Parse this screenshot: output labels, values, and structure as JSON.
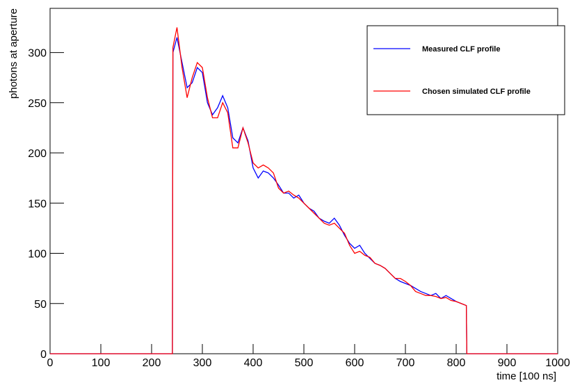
{
  "chart_data": {
    "type": "line",
    "xlabel": "time [100 ns]",
    "ylabel": "photons at aperture",
    "x": [
      0,
      241,
      242,
      250,
      260,
      270,
      280,
      290,
      300,
      310,
      320,
      330,
      340,
      350,
      360,
      370,
      380,
      390,
      400,
      410,
      420,
      430,
      440,
      450,
      460,
      470,
      480,
      490,
      500,
      510,
      520,
      530,
      540,
      550,
      560,
      570,
      580,
      590,
      600,
      610,
      620,
      630,
      640,
      650,
      660,
      670,
      680,
      690,
      700,
      710,
      720,
      730,
      740,
      750,
      760,
      770,
      780,
      790,
      800,
      810,
      820,
      821,
      1000
    ],
    "series": [
      {
        "name": "Measured CLF profile",
        "color": "#0000ff",
        "values": [
          0,
          0,
          300,
          315,
          290,
          265,
          270,
          285,
          280,
          250,
          238,
          245,
          257,
          245,
          215,
          210,
          225,
          212,
          185,
          175,
          182,
          180,
          175,
          168,
          160,
          160,
          155,
          158,
          150,
          145,
          142,
          135,
          132,
          130,
          135,
          128,
          118,
          110,
          105,
          108,
          100,
          95,
          90,
          88,
          85,
          80,
          75,
          72,
          70,
          68,
          65,
          62,
          60,
          58,
          60,
          55,
          58,
          55,
          52,
          50,
          48,
          0,
          0
        ]
      },
      {
        "name": "Chosen simulated CLF profile",
        "color": "#ff0000",
        "values": [
          0,
          0,
          305,
          325,
          285,
          255,
          275,
          290,
          285,
          255,
          235,
          235,
          250,
          240,
          205,
          205,
          225,
          210,
          190,
          185,
          188,
          185,
          180,
          165,
          160,
          162,
          158,
          155,
          150,
          145,
          140,
          135,
          130,
          128,
          130,
          125,
          120,
          108,
          100,
          102,
          98,
          96,
          90,
          88,
          85,
          80,
          75,
          75,
          72,
          68,
          62,
          60,
          58,
          58,
          57,
          55,
          56,
          53,
          52,
          50,
          48,
          0,
          0
        ]
      }
    ],
    "xlim": [
      0,
      1000
    ],
    "xticks": [
      0,
      100,
      200,
      300,
      400,
      500,
      600,
      700,
      800,
      900,
      1000
    ],
    "ylim": [
      0,
      344
    ],
    "yticks": [
      0,
      50,
      100,
      150,
      200,
      250,
      300
    ],
    "grid": false,
    "legend": "upper right"
  }
}
